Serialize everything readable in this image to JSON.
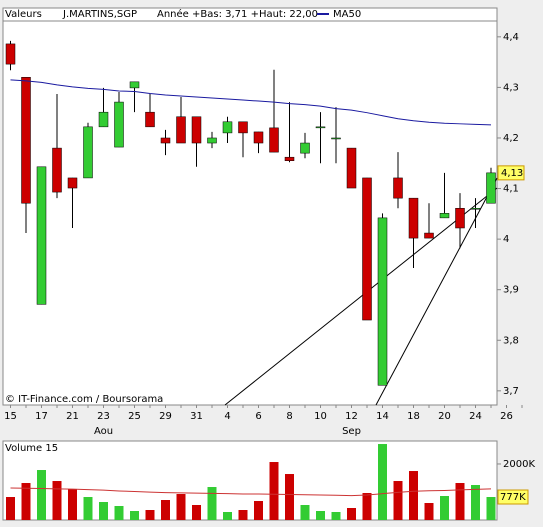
{
  "chart_data": [
    {
      "type": "candlestick",
      "title": "Valeurs",
      "subtitle": "J.MARTINS,SGP",
      "annotation": "Année +Bas: 3,71 +Haut: 22,00",
      "source": "© IT-Finance.com / Boursorama",
      "categories": [
        "15",
        null,
        "17",
        null,
        "21",
        null,
        "23",
        null,
        "25",
        null,
        "29",
        null,
        "31",
        null,
        "4",
        null,
        "6",
        null,
        "8",
        null,
        "10",
        null,
        "12",
        null,
        "14",
        null,
        "18",
        null,
        "20",
        null,
        "24",
        null,
        "26",
        null
      ],
      "months": [
        null,
        null,
        null,
        null,
        null,
        null,
        "Aou",
        null,
        null,
        null,
        null,
        null,
        null,
        null,
        null,
        null,
        null,
        null,
        null,
        null,
        null,
        null,
        "Sep",
        null,
        null,
        null,
        null,
        null,
        null,
        null,
        null,
        null
      ],
      "open": [
        4.386,
        4.32,
        3.871,
        4.18,
        4.121,
        4.121,
        4.222,
        4.182,
        4.299,
        4.251,
        4.2,
        4.242,
        4.242,
        4.19,
        4.21,
        4.232,
        4.212,
        4.22,
        4.162,
        4.17,
        4.222,
        4.2,
        4.18,
        4.121,
        3.711,
        4.121,
        4.081,
        4.012,
        4.042,
        4.061,
        4.061,
        4.071
      ],
      "high": [
        4.392,
        4.32,
        4.143,
        4.287,
        4.121,
        4.23,
        4.299,
        4.291,
        4.311,
        4.287,
        4.216,
        4.281,
        4.242,
        4.212,
        4.242,
        4.232,
        4.212,
        4.335,
        4.271,
        4.21,
        4.251,
        4.261,
        4.18,
        4.121,
        4.051,
        4.172,
        4.081,
        4.071,
        4.131,
        4.091,
        4.081,
        4.141
      ],
      "low": [
        4.334,
        4.012,
        3.871,
        4.081,
        4.022,
        4.121,
        4.222,
        4.182,
        4.251,
        4.222,
        4.166,
        4.19,
        4.143,
        4.18,
        4.19,
        4.162,
        4.17,
        4.172,
        4.152,
        4.16,
        4.15,
        4.15,
        4.101,
        3.84,
        3.711,
        4.061,
        3.943,
        4.002,
        4.042,
        3.982,
        4.022,
        4.071
      ],
      "close": [
        4.346,
        4.071,
        4.143,
        4.093,
        4.101,
        4.222,
        4.251,
        4.271,
        4.311,
        4.222,
        4.19,
        4.19,
        4.19,
        4.2,
        4.232,
        4.21,
        4.19,
        4.172,
        4.155,
        4.19,
        4.222,
        4.2,
        4.101,
        3.84,
        4.042,
        4.081,
        4.002,
        4.002,
        4.051,
        4.022,
        4.061,
        4.131
      ],
      "up_color": "#33cc33",
      "down_color": "#cc0000",
      "overlay": {
        "name": "MA50",
        "color": "#1a1aa0",
        "values": [
          4.315,
          4.313,
          4.31,
          4.305,
          4.301,
          4.298,
          4.296,
          4.293,
          4.292,
          4.288,
          4.285,
          4.283,
          4.281,
          4.279,
          4.277,
          4.275,
          4.273,
          4.271,
          4.268,
          4.266,
          4.263,
          4.258,
          4.255,
          4.25,
          4.244,
          4.238,
          4.234,
          4.231,
          4.229,
          4.228,
          4.227,
          4.226
        ]
      },
      "last_label": "4,13",
      "ylim": [
        3.672,
        4.457
      ],
      "yticks": [
        {
          "value": 3.7,
          "label": "3,7"
        },
        {
          "value": 3.8,
          "label": "3,8"
        },
        {
          "value": 3.9,
          "label": "3,9"
        },
        4,
        {
          "value": 4.1,
          "label": "4,1"
        },
        {
          "value": 4.2,
          "label": "4,2"
        },
        {
          "value": 4.3,
          "label": "4,3"
        },
        {
          "value": 4.4,
          "label": "4,4"
        }
      ]
    },
    {
      "type": "bar",
      "title": "Volume 15",
      "values": [
        777,
        1295,
        1776,
        1369,
        1073,
        777,
        592,
        444,
        259,
        296,
        666,
        888,
        481,
        1147,
        222,
        296,
        629,
        2072,
        1628,
        481,
        259,
        222,
        370,
        925,
        2738,
        1369,
        1739,
        555,
        814,
        1295,
        1221,
        777
      ],
      "overlay": {
        "color": "#cc3333",
        "values": [
          1110,
          1100,
          1090,
          1080,
          1070,
          1050,
          1030,
          1000,
          980,
          960,
          940,
          930,
          920,
          910,
          900,
          890,
          890,
          880,
          870,
          860,
          850,
          840,
          830,
          850,
          900,
          950,
          990,
          1010,
          1020,
          1040,
          1060,
          1080
        ]
      },
      "last_label": "777K",
      "ylim": [
        0,
        2850
      ],
      "yticks": [
        {
          "value": 2000,
          "label": "2000K"
        }
      ]
    }
  ]
}
